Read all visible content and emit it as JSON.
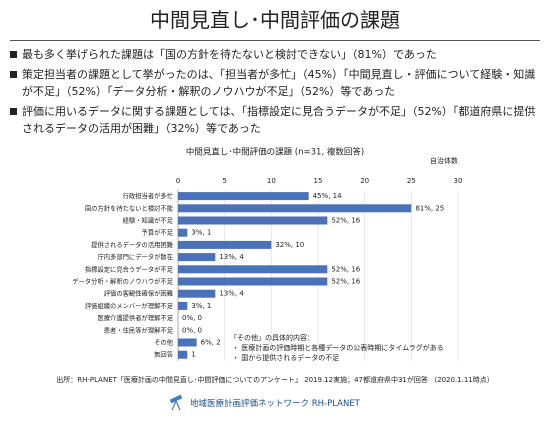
{
  "header": {
    "title": "中間見直し･中間評価の課題"
  },
  "bullets": [
    "最も多く挙げられた課題は「国の方針を待たないと検討できない」（81%）であった",
    "策定担当者の課題として挙がったのは、「担当者が多忙」（45%）「中間見直し・評価について経験・知識が不足」（52%）「データ分析・解釈のノウハウが不足」（52%）等であった",
    "評価に用いるデータに関する課題としては、「指標設定に見合うデータが不足」（52%）「都道府県に提供されるデータの活用が困難」（32%）等であった"
  ],
  "chart_data": {
    "type": "bar",
    "orientation": "horizontal",
    "title": "中間見直し･中間評価の課題 (n=31, 複数回答)",
    "x_label": "自治体数",
    "categories": [
      "行政担当者が多忙",
      "国の方針を待たないと検討不能",
      "経験・知識が不足",
      "予算が不足",
      "提供されるデータの活用困難",
      "庁内多部門にデータが散在",
      "指標設定に見合うデータが不足",
      "データ分析・解釈のノウハウが不足",
      "評価の客観性確保が困難",
      "評価組織のメンバーが理解不足",
      "医療介護提供者が理解不足",
      "患者・住民等が理解不足",
      "その他",
      "無回答"
    ],
    "values": [
      14,
      25,
      16,
      1,
      10,
      4,
      16,
      16,
      4,
      1,
      0,
      0,
      2,
      1
    ],
    "value_labels": [
      "45%, 14",
      "81%, 25",
      "52%, 16",
      "3%, 1",
      "32%, 10",
      "13%, 4",
      "52%, 16",
      "52%, 16",
      "13%, 4",
      "3%, 1",
      "0%, 0",
      "0%, 0",
      "6%, 2",
      "1"
    ],
    "color": "#4a72b8",
    "xlim": [
      0,
      30
    ],
    "xticks": [
      0,
      5,
      10,
      15,
      20,
      25,
      30
    ],
    "grid": true,
    "annotations": [
      "「その他」の具体的内容：",
      "・ 医療計画の評価時期と各種データの公表時期にタイムラグがある",
      "・ 国から提供されるデータの不足"
    ]
  },
  "footer": {
    "source": "出所：RH-PLANET「医療計画の中間見直し･中間評価についてのアンケート」 2019.12実施；47都道府県中31が回答 （2020.1.11時点）",
    "organization": "地域医療計画評価ネットワーク RH-PLANET"
  }
}
